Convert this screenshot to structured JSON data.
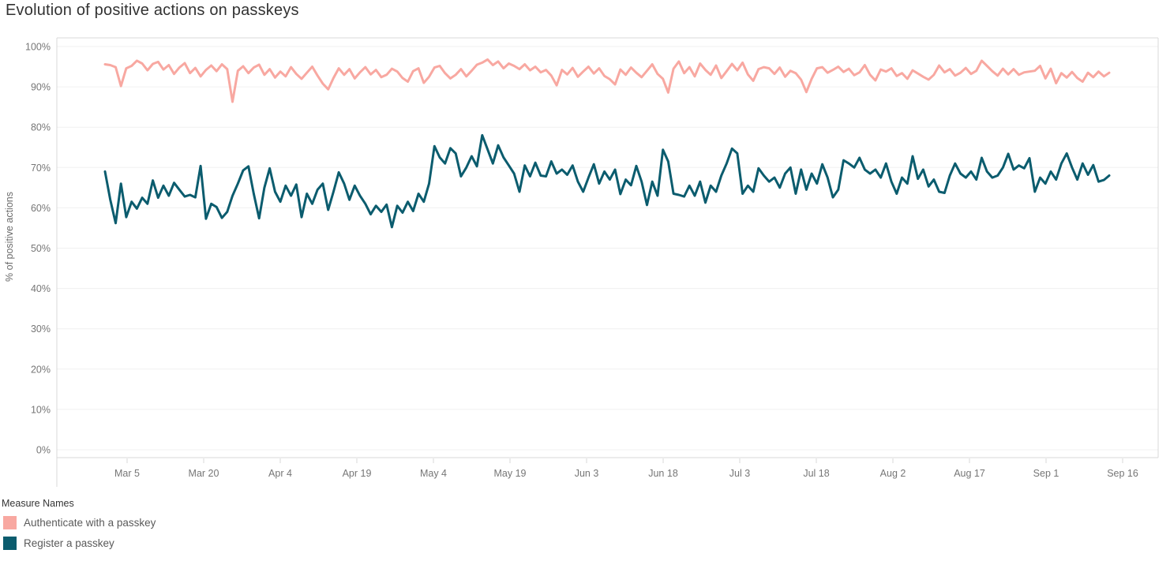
{
  "title": "Evolution of positive actions on passkeys",
  "y_axis": {
    "label": "% of positive actions",
    "ticks": [
      "0%",
      "10%",
      "20%",
      "30%",
      "40%",
      "50%",
      "60%",
      "70%",
      "80%",
      "90%",
      "100%"
    ]
  },
  "x_axis": {
    "ticks": [
      "Mar 5",
      "Mar 20",
      "Apr 4",
      "Apr 19",
      "May 4",
      "May 19",
      "Jun 3",
      "Jun 18",
      "Jul 3",
      "Jul 18",
      "Aug 2",
      "Aug 17",
      "Sep 1",
      "Sep 16"
    ]
  },
  "legend": {
    "title": "Measure Names",
    "items": [
      {
        "label": "Authenticate with a passkey",
        "color": "#F8A8A1"
      },
      {
        "label": "Register a passkey",
        "color": "#0B5C6E"
      }
    ]
  },
  "chart_data": {
    "type": "line",
    "title": "Evolution of positive actions on passkeys",
    "xlabel": "",
    "ylabel": "% of positive actions",
    "unit": "percent",
    "ylim": [
      0,
      100
    ],
    "grid": "horizontal",
    "legend_position": "bottom-left",
    "x_tick_labels": [
      "Mar 5",
      "Mar 20",
      "Apr 4",
      "Apr 19",
      "May 4",
      "May 19",
      "Jun 3",
      "Jun 18",
      "Jul 3",
      "Jul 18",
      "Aug 2",
      "Aug 17",
      "Sep 1",
      "Sep 16"
    ],
    "x_range_note": "daily values from early March to mid September",
    "series": [
      {
        "name": "Authenticate with a passkey",
        "color": "#F8A8A1",
        "values": [
          95.6,
          95.4,
          94.9,
          90.2,
          94.6,
          95.2,
          96.5,
          95.8,
          94.1,
          95.7,
          96.2,
          94.3,
          95.4,
          93.2,
          94.8,
          95.9,
          93.4,
          94.7,
          92.6,
          94.2,
          95.3,
          93.9,
          95.6,
          94.4,
          86.3,
          94.0,
          95.1,
          93.4,
          94.8,
          95.5,
          93.0,
          94.4,
          92.3,
          93.8,
          92.6,
          94.9,
          93.2,
          92.0,
          93.5,
          95.0,
          92.8,
          90.8,
          89.4,
          92.2,
          94.6,
          93.0,
          94.4,
          92.1,
          93.6,
          94.9,
          93.1,
          94.2,
          92.4,
          93.0,
          94.5,
          93.8,
          92.2,
          91.3,
          93.9,
          94.6,
          91.0,
          92.5,
          94.8,
          95.2,
          93.4,
          92.1,
          93.0,
          94.4,
          92.6,
          94.0,
          95.5,
          96.0,
          96.8,
          95.4,
          96.3,
          94.6,
          95.8,
          95.2,
          94.4,
          95.6,
          94.1,
          95.0,
          93.6,
          94.2,
          92.8,
          90.4,
          94.2,
          93.1,
          94.7,
          92.5,
          93.8,
          95.0,
          93.3,
          94.6,
          92.7,
          91.9,
          90.6,
          94.3,
          93.0,
          94.8,
          93.5,
          92.4,
          94.0,
          95.6,
          93.2,
          92.0,
          88.6,
          94.5,
          96.3,
          93.4,
          94.9,
          92.6,
          95.8,
          94.2,
          93.0,
          95.3,
          92.2,
          93.9,
          95.7,
          94.1,
          96.0,
          93.1,
          91.5,
          94.4,
          94.9,
          94.6,
          93.2,
          94.8,
          92.5,
          94.0,
          93.4,
          91.8,
          88.7,
          92.0,
          94.6,
          94.9,
          93.5,
          94.2,
          95.0,
          93.7,
          94.5,
          92.9,
          93.6,
          95.4,
          93.0,
          91.6,
          94.3,
          93.8,
          94.6,
          92.7,
          93.4,
          92.0,
          94.1,
          93.3,
          92.5,
          91.8,
          93.0,
          95.3,
          93.6,
          94.4,
          92.8,
          93.5,
          94.7,
          93.2,
          94.0,
          96.5,
          95.2,
          93.9,
          92.8,
          94.5,
          93.1,
          94.4,
          93.0,
          93.6,
          93.8,
          94.0,
          95.2,
          92.1,
          94.5,
          90.9,
          93.4,
          92.3,
          93.7,
          92.2,
          91.3,
          93.5,
          92.4,
          93.8,
          92.6,
          93.5
        ]
      },
      {
        "name": "Register a passkey",
        "color": "#0B5C6E",
        "values": [
          69.0,
          62.0,
          56.2,
          66.0,
          57.7,
          61.5,
          59.8,
          62.5,
          61.0,
          66.8,
          62.5,
          65.5,
          63.0,
          66.2,
          64.5,
          62.8,
          63.2,
          62.6,
          70.4,
          57.3,
          61.0,
          60.2,
          57.5,
          59.0,
          63.0,
          66.0,
          69.3,
          70.3,
          63.5,
          57.4,
          65.0,
          69.8,
          64.0,
          61.5,
          65.5,
          63.0,
          65.8,
          57.7,
          63.5,
          61.0,
          64.5,
          66.0,
          59.5,
          64.0,
          68.8,
          66.0,
          62.0,
          65.5,
          63.0,
          61.0,
          58.4,
          60.5,
          59.0,
          60.8,
          55.2,
          60.5,
          58.8,
          61.5,
          59.2,
          63.5,
          61.5,
          66.0,
          75.3,
          72.5,
          71.0,
          74.8,
          73.5,
          67.8,
          70.0,
          72.8,
          70.3,
          78.0,
          74.5,
          71.0,
          75.5,
          72.5,
          70.5,
          68.5,
          64.0,
          70.5,
          67.8,
          71.2,
          68.0,
          67.8,
          71.5,
          68.5,
          69.5,
          68.2,
          70.5,
          66.5,
          64.0,
          67.5,
          70.8,
          66.0,
          69.0,
          67.0,
          69.5,
          63.4,
          67.0,
          65.6,
          70.4,
          66.5,
          60.7,
          66.5,
          63.0,
          74.4,
          71.5,
          63.5,
          63.2,
          62.8,
          65.5,
          63.0,
          66.5,
          61.3,
          65.5,
          64.0,
          68.0,
          71.0,
          74.7,
          73.5,
          63.5,
          65.5,
          64.0,
          69.8,
          68.0,
          66.5,
          67.5,
          65.0,
          68.5,
          70.0,
          63.5,
          69.5,
          64.5,
          68.5,
          66.0,
          70.8,
          67.5,
          62.6,
          64.5,
          71.8,
          71.0,
          70.0,
          72.4,
          69.5,
          68.5,
          69.5,
          67.5,
          71.0,
          66.5,
          63.5,
          67.5,
          66.0,
          72.8,
          67.2,
          69.5,
          65.3,
          67.0,
          64.0,
          63.7,
          68.0,
          71.0,
          68.5,
          67.5,
          69.0,
          67.0,
          72.4,
          69.0,
          67.5,
          68.0,
          70.0,
          73.4,
          69.5,
          70.5,
          69.8,
          72.3,
          64.0,
          67.5,
          66.0,
          69.0,
          67.0,
          71.0,
          73.5,
          70.0,
          67.0,
          71.0,
          68.2,
          70.6,
          66.5,
          66.9,
          68.0
        ]
      }
    ]
  }
}
